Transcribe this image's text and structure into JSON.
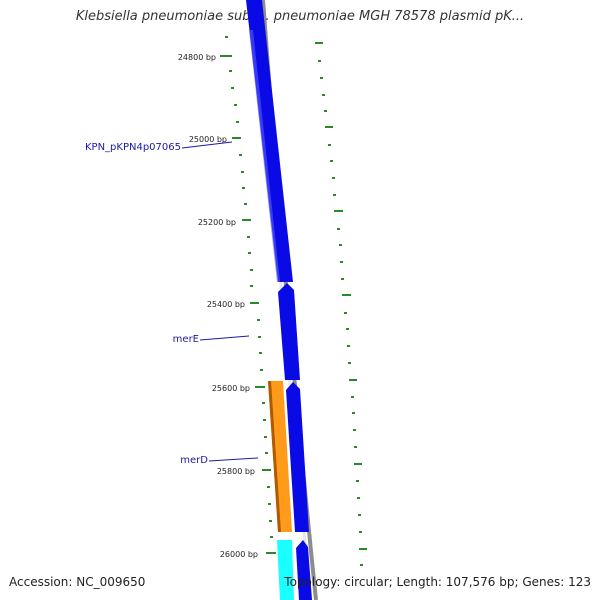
{
  "title": "Klebsiella pneumoniae subsp. pneumoniae MGH 78578 plasmid pK...",
  "accession_text": "Accession: NC_009650",
  "summary_text": "Topology: circular; Length: 107,576 bp; Genes: 123",
  "colors": {
    "blue": "#0a0ae6",
    "orange": "#ff9a1a",
    "orange_dark": "#b05a00",
    "cyan": "#1affff",
    "backbone": "#8c8c8c",
    "tick_green": "#2a8a2a",
    "label_blue": "#1a1aa8"
  },
  "diagram": {
    "ticks": [
      {
        "bp": 24800,
        "label": "24800 bp"
      },
      {
        "bp": 25000,
        "label": "25000 bp"
      },
      {
        "bp": 25200,
        "label": "25200 bp"
      },
      {
        "bp": 25400,
        "label": "25400 bp"
      },
      {
        "bp": 25600,
        "label": "25600 bp"
      },
      {
        "bp": 25800,
        "label": "25800 bp"
      },
      {
        "bp": 26000,
        "label": "26000 bp"
      }
    ],
    "gene_labels": [
      {
        "name": "KPN_pKPN4p07065"
      },
      {
        "name": "merE"
      },
      {
        "name": "merD"
      }
    ]
  }
}
